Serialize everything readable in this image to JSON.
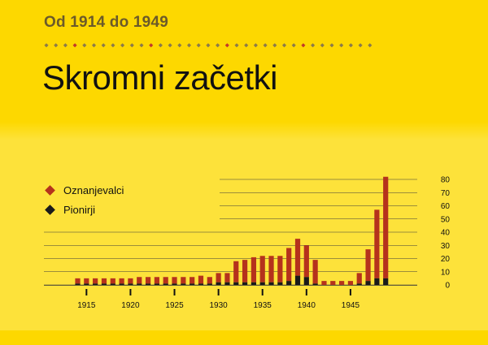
{
  "header": {
    "subtitle": "Od 1914 do 1949",
    "title": "Skromni začetki"
  },
  "colors": {
    "background": "#fde23a",
    "band": "#fdd800",
    "dot_gray": "#8a7a4a",
    "dot_red": "#c0392b",
    "oznanjevalci": "#b5321c",
    "pionirji": "#1a1a1a",
    "grid": "#3a3a3a"
  },
  "chart_data": {
    "type": "bar",
    "stacked": true,
    "x": [
      1914,
      1915,
      1916,
      1917,
      1918,
      1919,
      1920,
      1921,
      1922,
      1923,
      1924,
      1925,
      1926,
      1927,
      1928,
      1929,
      1930,
      1931,
      1932,
      1933,
      1934,
      1935,
      1936,
      1937,
      1938,
      1939,
      1940,
      1941,
      1942,
      1943,
      1944,
      1945,
      1946,
      1947,
      1948,
      1949
    ],
    "series": [
      {
        "name": "Oznanjevalci",
        "color": "#b5321c",
        "values": [
          4,
          4,
          4,
          4,
          4,
          4,
          4,
          5,
          5,
          5,
          5,
          5,
          5,
          5,
          6,
          5,
          7,
          7,
          16,
          17,
          19,
          20,
          20,
          20,
          25,
          28,
          24,
          18,
          3,
          3,
          3,
          3,
          8,
          24,
          52,
          77
        ]
      },
      {
        "name": "Pionirji",
        "color": "#1a1a1a",
        "values": [
          1,
          1,
          1,
          1,
          1,
          1,
          1,
          1,
          1,
          1,
          1,
          1,
          1,
          1,
          1,
          1,
          2,
          2,
          2,
          2,
          2,
          2,
          2,
          2,
          3,
          7,
          6,
          1,
          0,
          0,
          0,
          0,
          1,
          3,
          5,
          5
        ]
      }
    ],
    "x_ticks": [
      "1915",
      "1920",
      "1925",
      "1930",
      "1935",
      "1940",
      "1945"
    ],
    "y_ticks": [
      "80",
      "70",
      "60",
      "50",
      "40",
      "30",
      "20",
      "10",
      "0"
    ],
    "ylim": [
      0,
      80
    ],
    "legend": [
      "Oznanjevalci",
      "Pionirji"
    ],
    "legend_position": "top-left",
    "y_axis_side": "right",
    "grid": true
  }
}
